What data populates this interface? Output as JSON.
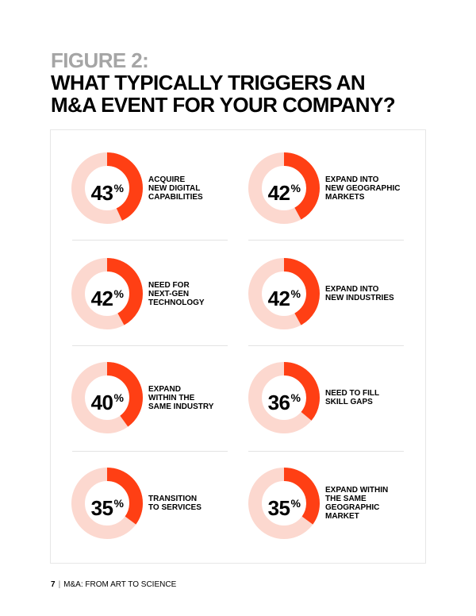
{
  "heading": {
    "figure_label": "FIGURE 2:",
    "title_line1": "WHAT TYPICALLY TRIGGERS AN",
    "title_line2": "M&A EVENT FOR YOUR COMPANY?"
  },
  "colors": {
    "accent": "#ff3f14",
    "track": "#fcd8cf",
    "figure_label": "#a5a5a5"
  },
  "chart_data": {
    "type": "pie",
    "unit": "%",
    "items": [
      {
        "value": 43,
        "label": "ACQUIRE\nNEW DIGITAL\nCAPABILITIES"
      },
      {
        "value": 42,
        "label": "EXPAND INTO\nNEW GEOGRAPHIC\nMARKETS"
      },
      {
        "value": 42,
        "label": "NEED FOR\nNEXT-GEN\nTECHNOLOGY"
      },
      {
        "value": 42,
        "label": "EXPAND INTO\nNEW INDUSTRIES"
      },
      {
        "value": 40,
        "label": "EXPAND\nWITHIN THE\nSAME INDUSTRY"
      },
      {
        "value": 36,
        "label": "NEED TO FILL\nSKILL GAPS"
      },
      {
        "value": 35,
        "label": "TRANSITION\nTO SERVICES"
      },
      {
        "value": 35,
        "label": "EXPAND WITHIN\nTHE SAME\nGEOGRAPHIC\nMARKET"
      }
    ]
  },
  "footer": {
    "page_number": "7",
    "separator": "|",
    "text": "M&A: FROM ART TO SCIENCE"
  }
}
